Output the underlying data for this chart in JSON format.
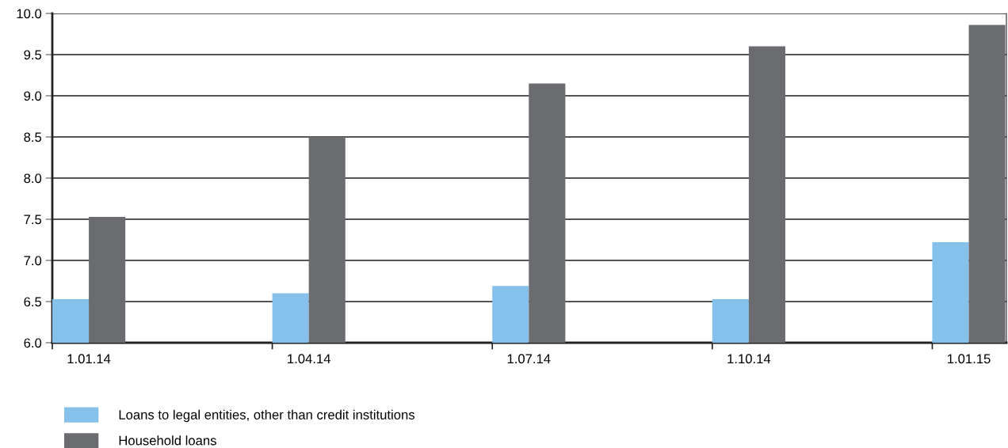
{
  "chart_data": {
    "type": "bar",
    "categories": [
      "1.01.14",
      "1.04.14",
      "1.07.14",
      "1.10.14",
      "1.01.15"
    ],
    "series": [
      {
        "name": "Loans to legal entities, other than credit institutions",
        "color": "#85c1eb",
        "values": [
          6.53,
          6.6,
          6.69,
          6.53,
          7.22
        ]
      },
      {
        "name": "Household loans",
        "color": "#6b6c70",
        "values": [
          7.53,
          8.5,
          9.15,
          9.6,
          9.86
        ]
      }
    ],
    "ylim": [
      6.0,
      10.0
    ],
    "yticks": [
      {
        "value": 6,
        "label": "6.0"
      },
      {
        "value": 6.5,
        "label": "6.5"
      },
      {
        "value": 7,
        "label": "7.0"
      },
      {
        "value": 7.5,
        "label": "7.5"
      },
      {
        "value": 8,
        "label": "8.0"
      },
      {
        "value": 8.5,
        "label": "8.5"
      },
      {
        "value": 9,
        "label": "9.0"
      },
      {
        "value": 9.5,
        "label": "9.5"
      },
      {
        "value": 10,
        "label": "10.0"
      }
    ],
    "grid": "y",
    "legend": "bottom"
  }
}
